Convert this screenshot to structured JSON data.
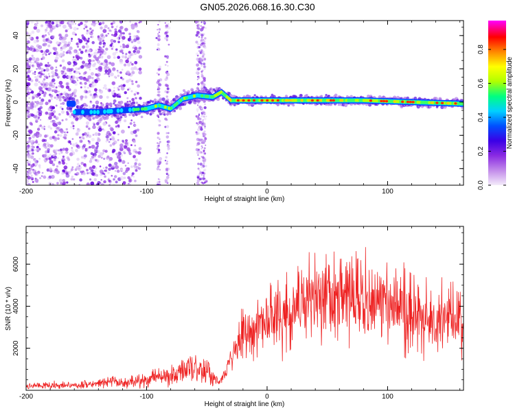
{
  "figure": {
    "title": "GN05.2026.068.16.30.C30"
  },
  "chart_data": [
    {
      "type": "heatmap",
      "name": "spectrogram",
      "xlabel": "Height of straight line (km)",
      "ylabel": "Frequency (Hz)",
      "xlim": [
        -200,
        163
      ],
      "ylim": [
        -50,
        49
      ],
      "xticks": [
        -200,
        -100,
        0,
        100
      ],
      "yticks": [
        -40,
        -20,
        0,
        20,
        40
      ],
      "ridge": [
        {
          "x": -160,
          "y": -6
        },
        {
          "x": -140,
          "y": -6
        },
        {
          "x": -120,
          "y": -5
        },
        {
          "x": -100,
          "y": -4
        },
        {
          "x": -90,
          "y": -2
        },
        {
          "x": -80,
          "y": -4
        },
        {
          "x": -70,
          "y": 2
        },
        {
          "x": -58,
          "y": 4
        },
        {
          "x": -45,
          "y": 3
        },
        {
          "x": -38,
          "y": 6
        },
        {
          "x": -30,
          "y": 1
        },
        {
          "x": 0,
          "y": 1
        },
        {
          "x": 40,
          "y": 1
        },
        {
          "x": 80,
          "y": 1
        },
        {
          "x": 120,
          "y": 0
        },
        {
          "x": 163,
          "y": -1
        }
      ],
      "colorbar": {
        "label": "Normalized spectral amplitude",
        "range": [
          0,
          0.97
        ],
        "ticks": [
          0.0,
          0.2,
          0.4,
          0.6,
          0.8
        ],
        "tick_labels": [
          "0.0",
          "0.2",
          "0.4",
          "0.6",
          "0.8"
        ],
        "colors": [
          "#f4ecfa",
          "#c28bea",
          "#8a2be2",
          "#3a00e6",
          "#0050ff",
          "#00d0ff",
          "#00ff80",
          "#b0ff00",
          "#ffff00",
          "#ff8800",
          "#ff0000",
          "#ff00ff"
        ]
      }
    },
    {
      "type": "line",
      "name": "snr",
      "xlabel": "Height of straight line (km)",
      "ylabel": "SNR (10 * v/v)",
      "xlim": [
        -200,
        163
      ],
      "ylim": [
        0,
        7800
      ],
      "xticks": [
        -200,
        -100,
        0,
        100
      ],
      "yticks": [
        2000,
        4000,
        6000
      ],
      "series": [
        {
          "name": "SNR",
          "color": "#ee2222",
          "x": [
            -200,
            -180,
            -160,
            -140,
            -130,
            -120,
            -100,
            -90,
            -80,
            -70,
            -60,
            -50,
            -40,
            -30,
            -20,
            -10,
            0,
            10,
            20,
            30,
            40,
            60,
            70,
            80,
            100,
            120,
            140,
            163
          ],
          "y": [
            200,
            250,
            230,
            300,
            450,
            350,
            500,
            650,
            700,
            1000,
            1100,
            900,
            300,
            1500,
            2800,
            3000,
            3300,
            3600,
            3900,
            4200,
            4400,
            4400,
            4300,
            4200,
            4000,
            3800,
            3500,
            3400
          ]
        }
      ]
    }
  ]
}
